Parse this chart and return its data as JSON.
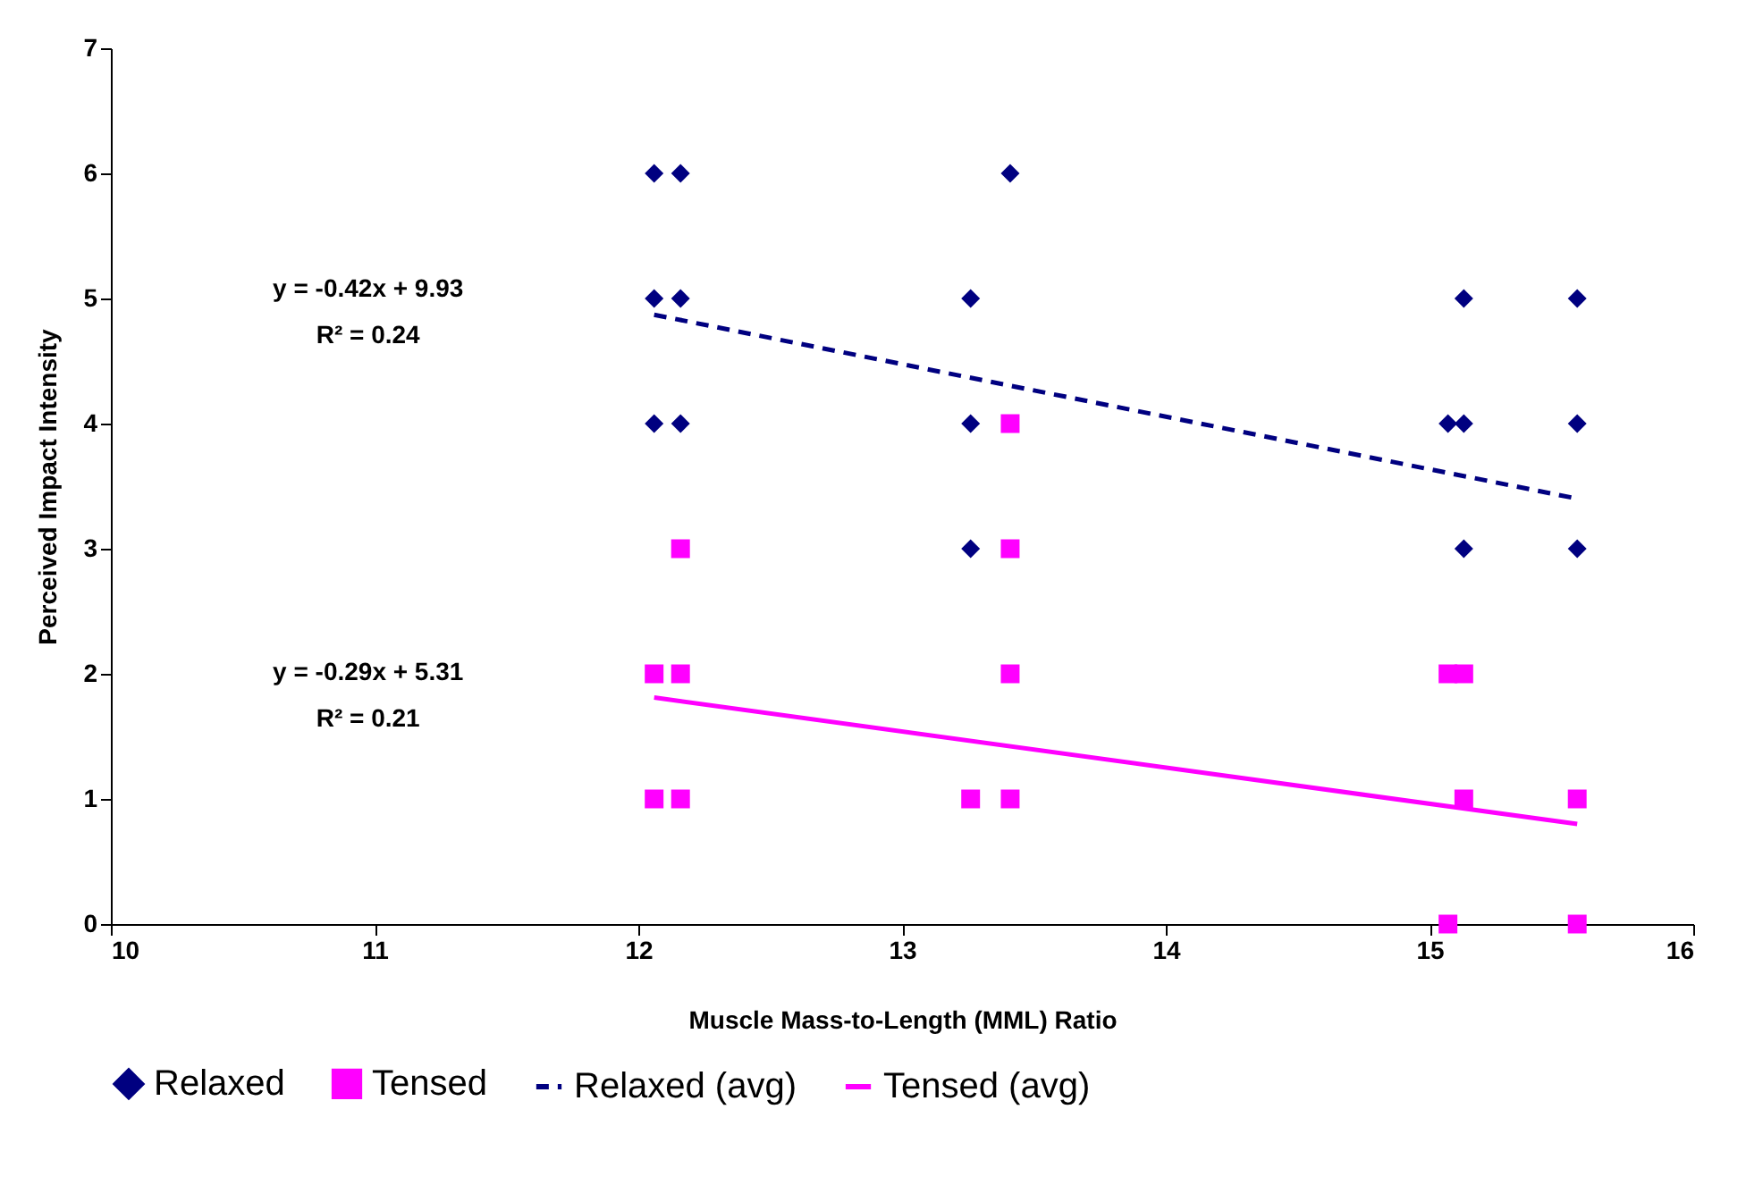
{
  "chart_data": {
    "type": "scatter",
    "xlabel": "Muscle Mass-to-Length (MML) Ratio",
    "ylabel": "Perceived Impact Intensity",
    "xlim": [
      10,
      16
    ],
    "xticks": [
      10,
      11,
      12,
      13,
      14,
      15,
      16
    ],
    "ylim": [
      0,
      7
    ],
    "yticks": [
      0,
      1,
      2,
      3,
      4,
      5,
      6,
      7
    ],
    "grid": false,
    "legend": "bottom",
    "series": [
      {
        "name": "Relaxed",
        "marker": "diamond",
        "color": "#000080",
        "x": [
          12.06,
          12.16,
          12.06,
          12.16,
          12.06,
          12.16,
          13.41,
          13.26,
          13.26,
          13.26,
          15.13,
          15.07,
          15.13,
          15.13,
          15.56,
          15.56,
          15.56
        ],
        "values": [
          6,
          6,
          5,
          5,
          4,
          4,
          6,
          5,
          4,
          3,
          5,
          4,
          4,
          3,
          5,
          4,
          3
        ]
      },
      {
        "name": "Tensed",
        "marker": "square",
        "color": "#ff00ff",
        "x": [
          12.16,
          12.06,
          12.16,
          12.06,
          12.16,
          13.41,
          13.41,
          13.41,
          13.26,
          13.41,
          15.07,
          15.13,
          15.13,
          15.07,
          15.56,
          15.56
        ],
        "values": [
          3,
          2,
          2,
          1,
          1,
          4,
          3,
          2,
          1,
          1,
          2,
          2,
          1,
          0,
          1,
          0
        ]
      },
      {
        "name": "Relaxed (avg)",
        "type": "line",
        "line_style": "dashed",
        "color": "#000080",
        "x": [
          12.06,
          15.56
        ],
        "values": [
          4.87,
          3.4
        ]
      },
      {
        "name": "Tensed (avg)",
        "type": "line",
        "line_style": "solid",
        "color": "#ff00ff",
        "x": [
          12.06,
          15.56
        ],
        "values": [
          1.81,
          0.8
        ]
      }
    ],
    "annotations": [
      "y = -0.42x + 9.93",
      "R² = 0.24",
      "y = -0.29x + 5.31",
      "R² = 0.21"
    ]
  }
}
